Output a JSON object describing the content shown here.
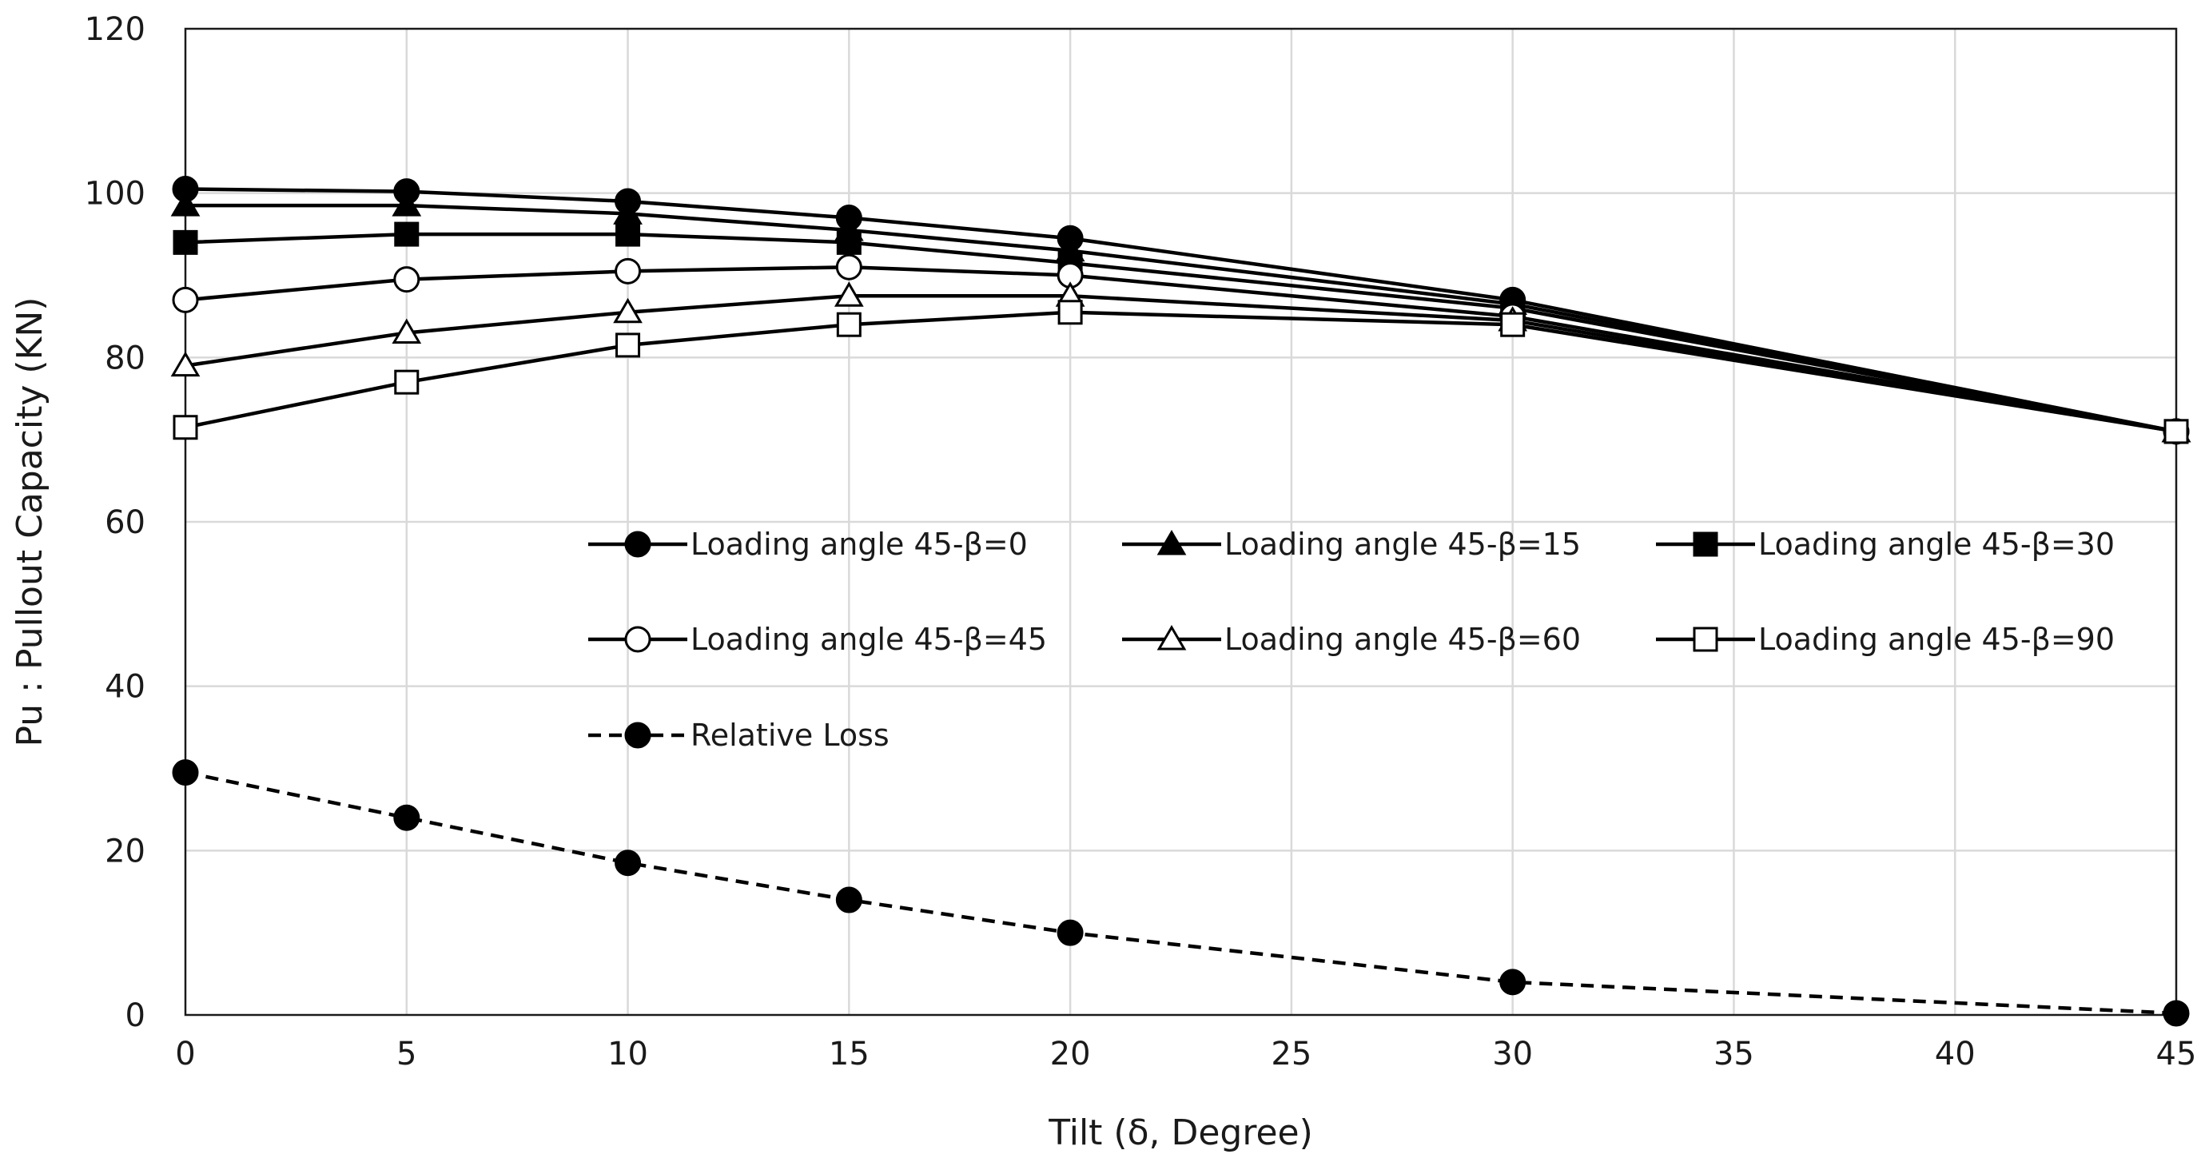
{
  "chart_data": {
    "type": "line",
    "title": "",
    "xlabel": "Tilt (δ, Degree)",
    "ylabel": "Pu : Pullout Capacity (KN)",
    "xlim": [
      0,
      45
    ],
    "ylim": [
      0,
      120
    ],
    "grid": true,
    "legend_position": "center-right",
    "x_ticks": [
      0,
      5,
      10,
      15,
      20,
      25,
      30,
      35,
      40,
      45
    ],
    "y_ticks": [
      0,
      20,
      40,
      60,
      80,
      100,
      120
    ],
    "x_tick_labels": [
      "0",
      "5",
      "10",
      "15",
      "20",
      "25",
      "30",
      "35",
      "40",
      "45"
    ],
    "y_tick_labels": [
      "0",
      "20",
      "40",
      "60",
      "80",
      "100",
      "120"
    ],
    "series": [
      {
        "name": "Loading angle 45-β=0",
        "marker": "circle-filled",
        "line": "solid",
        "x": [
          0,
          5,
          10,
          15,
          20,
          30,
          45
        ],
        "values": [
          100.5,
          100.2,
          99.0,
          97.0,
          94.5,
          87.0,
          71.0
        ]
      },
      {
        "name": "Loading angle 45-β=15",
        "marker": "triangle-filled",
        "line": "solid",
        "x": [
          0,
          5,
          10,
          15,
          20,
          30,
          45
        ],
        "values": [
          98.5,
          98.5,
          97.5,
          95.5,
          93.0,
          86.5,
          71.0
        ]
      },
      {
        "name": "Loading angle 45-β=30",
        "marker": "square-filled",
        "line": "solid",
        "x": [
          0,
          5,
          10,
          15,
          20,
          30,
          45
        ],
        "values": [
          94.0,
          95.0,
          95.0,
          94.0,
          91.5,
          86.0,
          71.0
        ]
      },
      {
        "name": "Loading angle 45-β=45",
        "marker": "circle-open",
        "line": "solid",
        "x": [
          0,
          5,
          10,
          15,
          20,
          30,
          45
        ],
        "values": [
          87.0,
          89.5,
          90.5,
          91.0,
          90.0,
          85.0,
          71.0
        ]
      },
      {
        "name": "Loading angle 45-β=60",
        "marker": "triangle-open",
        "line": "solid",
        "x": [
          0,
          5,
          10,
          15,
          20,
          30,
          45
        ],
        "values": [
          79.0,
          83.0,
          85.5,
          87.5,
          87.5,
          84.5,
          71.0
        ]
      },
      {
        "name": "Loading angle 45-β=90",
        "marker": "square-open",
        "line": "solid",
        "x": [
          0,
          5,
          10,
          15,
          20,
          30,
          45
        ],
        "values": [
          71.5,
          77.0,
          81.5,
          84.0,
          85.5,
          84.0,
          71.0
        ]
      },
      {
        "name": "Relative Loss",
        "marker": "circle-filled",
        "line": "dashed",
        "x": [
          0,
          5,
          10,
          15,
          20,
          30,
          45
        ],
        "values": [
          29.5,
          24.0,
          18.5,
          14.0,
          10.0,
          4.0,
          0.2
        ]
      }
    ]
  },
  "colors": {
    "line": "#000000",
    "grid": "#d9d9d9",
    "background": "#ffffff",
    "text": "#1a1a1a"
  }
}
